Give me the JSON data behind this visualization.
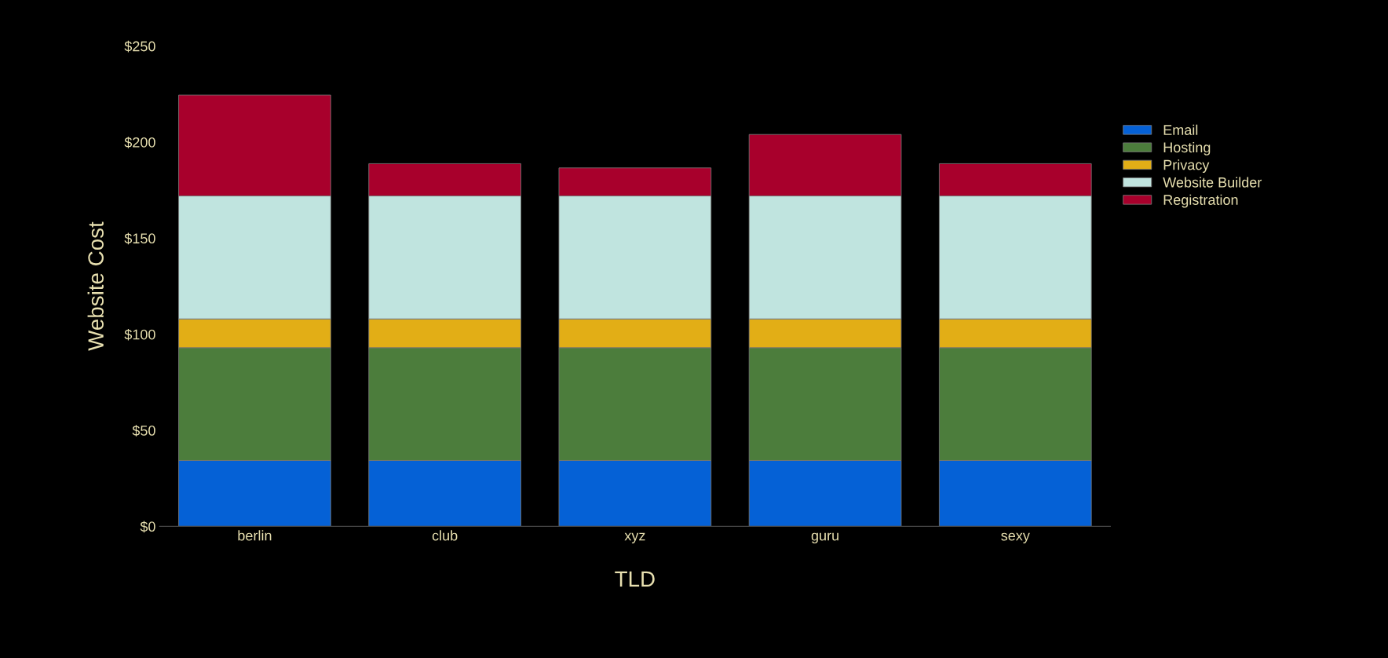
{
  "chart_data": {
    "type": "bar",
    "stacked": true,
    "xlabel": "TLD",
    "ylabel": "Website Cost",
    "categories": [
      "berlin",
      "club",
      "xyz",
      "guru",
      "sexy"
    ],
    "series": [
      {
        "name": "Email",
        "color": "#0561d6",
        "values": [
          34.3,
          34.3,
          34.3,
          34.3,
          34.3
        ]
      },
      {
        "name": "Hosting",
        "color": "#4c7d3c",
        "values": [
          58.7,
          58.7,
          58.7,
          58.7,
          58.7
        ]
      },
      {
        "name": "Privacy",
        "color": "#e2ae16",
        "values": [
          15,
          15,
          15,
          15,
          15
        ]
      },
      {
        "name": "Website Builder",
        "color": "#c0e4df",
        "values": [
          64,
          64,
          64,
          64,
          64
        ]
      },
      {
        "name": "Registration",
        "color": "#a8002c",
        "values": [
          52.5,
          16.8,
          14.6,
          32,
          16.8
        ]
      }
    ],
    "ylim": [
      0,
      250
    ],
    "yticks": [
      {
        "value": 0,
        "label": "$0"
      },
      {
        "value": 50,
        "label": "$50"
      },
      {
        "value": 100,
        "label": "$100"
      },
      {
        "value": 150,
        "label": "$150"
      },
      {
        "value": 200,
        "label": "$200"
      },
      {
        "value": 250,
        "label": "$250"
      }
    ],
    "grid": false,
    "legend": "right"
  }
}
